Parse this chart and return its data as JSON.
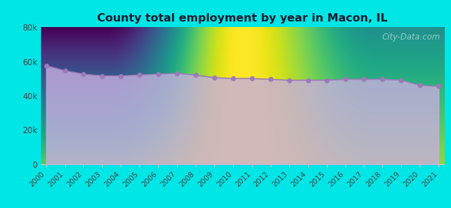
{
  "title": "County total employment by year in Macon, IL",
  "years": [
    2000,
    2001,
    2002,
    2003,
    2004,
    2005,
    2006,
    2007,
    2008,
    2009,
    2010,
    2011,
    2012,
    2013,
    2014,
    2015,
    2016,
    2017,
    2018,
    2019,
    2020,
    2021
  ],
  "values": [
    57500,
    54500,
    52500,
    51500,
    51500,
    52000,
    52500,
    53000,
    52000,
    50500,
    50000,
    50000,
    49500,
    49000,
    49000,
    49000,
    49500,
    49500,
    49500,
    49000,
    46000,
    45500
  ],
  "background_color": "#00e5e5",
  "fill_color": "#c8aee0",
  "line_color": "#9b7bb8",
  "marker_color": "#9b7bb8",
  "title_color": "#1a1a2e",
  "tick_color": "#444444",
  "ylim": [
    0,
    80000
  ],
  "yticks": [
    0,
    20000,
    40000,
    60000,
    80000
  ],
  "ytick_labels": [
    "0",
    "20k",
    "40k",
    "60k",
    "80k"
  ],
  "watermark_text": "City-Data.com",
  "watermark_color": "#a8d4d4",
  "plot_bg_top_color": "#e8fff4",
  "plot_bg_bottom_color": "#f8fffc"
}
